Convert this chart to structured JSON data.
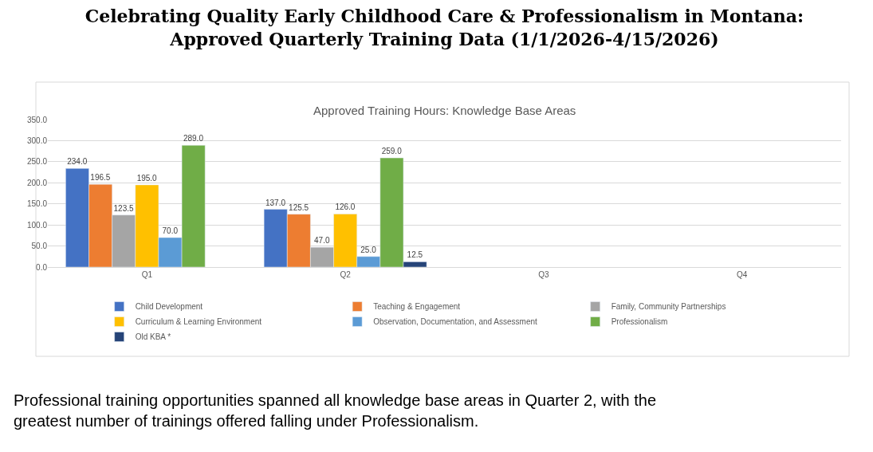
{
  "chart_data": {
    "type": "bar",
    "title": "Celebrating Quality Early Childhood Care & Professionalism in Montana: Approved Quarterly Training Data (1/1/2026-4/15/2026)",
    "subtitle": "Approved Training Hours: Knowledge Base Areas",
    "categories": [
      "Q1",
      "Q2",
      "Q3",
      "Q4"
    ],
    "series": [
      {
        "name": "Child Development",
        "color": "#4472c4",
        "values": [
          234.0,
          137.0,
          null,
          null
        ],
        "value_labels": [
          "234.0",
          "137.0",
          null,
          null
        ]
      },
      {
        "name": "Teaching & Engagement",
        "color": "#ed7d31",
        "values": [
          196.5,
          125.5,
          null,
          null
        ],
        "value_labels": [
          "196.5",
          "125.5",
          null,
          null
        ]
      },
      {
        "name": "Family, Community Partnerships",
        "color": "#a5a5a5",
        "values": [
          123.5,
          47.0,
          null,
          null
        ],
        "value_labels": [
          "123.5",
          "47.0",
          null,
          null
        ]
      },
      {
        "name": "Curriculum & Learning Environment",
        "color": "#ffc000",
        "values": [
          195.0,
          126.0,
          null,
          null
        ],
        "value_labels": [
          "195.0",
          "126.0",
          null,
          null
        ]
      },
      {
        "name": "Observation, Documentation, and Assessment",
        "color": "#5b9bd5",
        "values": [
          70.0,
          25.0,
          null,
          null
        ],
        "value_labels": [
          "70.0",
          "25.0",
          null,
          null
        ]
      },
      {
        "name": "Professionalism",
        "color": "#70ad47",
        "values": [
          289.0,
          259.0,
          null,
          null
        ],
        "value_labels": [
          "289.0",
          "259.0",
          null,
          null
        ]
      },
      {
        "name": "Old KBA *",
        "color": "#264478",
        "values": [
          null,
          12.5,
          null,
          null
        ],
        "value_labels": [
          null,
          "12.5",
          null,
          null
        ]
      }
    ],
    "ylim": [
      0,
      350
    ],
    "yticks": [
      {
        "value": 0,
        "label": "0.0"
      },
      {
        "value": 50,
        "label": "50.0"
      },
      {
        "value": 100,
        "label": "100.0"
      },
      {
        "value": 150,
        "label": "150.0"
      },
      {
        "value": 200,
        "label": "200.0"
      },
      {
        "value": 250,
        "label": "250.0"
      },
      {
        "value": 300,
        "label": "300.0"
      },
      {
        "value": 350,
        "label": "350.0"
      }
    ],
    "grid": "y",
    "legend": "bottom",
    "annotations": [
      "Professional training opportunities spanned all knowledge base areas in Quarter 2, with the greatest number of trainings offered falling under Professionalism."
    ]
  }
}
